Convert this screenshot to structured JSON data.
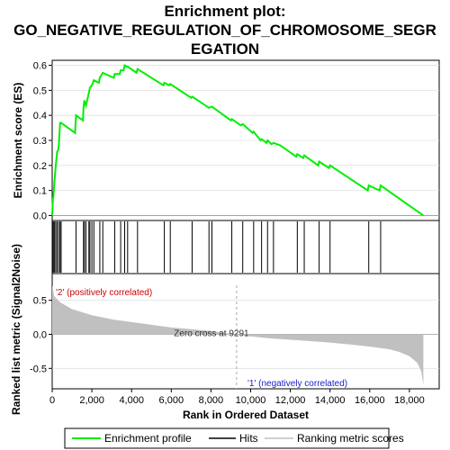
{
  "chart_data": {
    "type": "line",
    "title_lines": [
      "Enrichment plot:",
      "GO_NEGATIVE_REGULATION_OF_CHROMOSOME_SEGR",
      "EGATION"
    ],
    "es_panel": {
      "ylabel": "Enrichment score (ES)",
      "ylim": [
        -0.02,
        0.62
      ],
      "yticks": [
        "0.0",
        "0.1",
        "0.2",
        "0.3",
        "0.4",
        "0.5",
        "0.6"
      ],
      "ytick_values": [
        0.0,
        0.1,
        0.2,
        0.3,
        0.4,
        0.5,
        0.6
      ],
      "line_color": "#00ee00",
      "series": [
        {
          "name": "Enrichment profile",
          "x": [
            0,
            40,
            60,
            120,
            180,
            250,
            300,
            330,
            400,
            450,
            1150,
            1200,
            1550,
            1580,
            1620,
            1700,
            1850,
            1900,
            2000,
            2100,
            2350,
            2400,
            2550,
            3100,
            3150,
            3400,
            3450,
            3600,
            3650,
            3750,
            3800,
            4250,
            4300,
            5600,
            5650,
            5900,
            5950,
            7000,
            7050,
            7900,
            8050,
            9000,
            9050,
            9500,
            9600,
            10100,
            10150,
            10500,
            10550,
            10800,
            10850,
            11050,
            11150,
            11500,
            12300,
            12350,
            12650,
            12700,
            13400,
            13450,
            13950,
            14000,
            15900,
            15950,
            16500,
            16550,
            18700
          ],
          "y": [
            0.0,
            0.07,
            0.075,
            0.14,
            0.2,
            0.255,
            0.26,
            0.28,
            0.37,
            0.37,
            0.33,
            0.4,
            0.38,
            0.43,
            0.46,
            0.44,
            0.49,
            0.51,
            0.52,
            0.54,
            0.53,
            0.55,
            0.57,
            0.55,
            0.565,
            0.565,
            0.58,
            0.58,
            0.6,
            0.595,
            0.595,
            0.57,
            0.585,
            0.52,
            0.53,
            0.52,
            0.525,
            0.47,
            0.475,
            0.43,
            0.435,
            0.38,
            0.385,
            0.36,
            0.365,
            0.33,
            0.335,
            0.3,
            0.305,
            0.29,
            0.3,
            0.285,
            0.29,
            0.28,
            0.235,
            0.245,
            0.23,
            0.24,
            0.2,
            0.215,
            0.19,
            0.2,
            0.1,
            0.12,
            0.1,
            0.12,
            0.0
          ]
        }
      ]
    },
    "hits_panel": {
      "hits": [
        20,
        60,
        120,
        180,
        250,
        330,
        400,
        450,
        1200,
        1580,
        1620,
        1700,
        1850,
        1900,
        2000,
        2100,
        2400,
        2550,
        3150,
        3450,
        3650,
        3800,
        4300,
        5650,
        5950,
        7050,
        7900,
        8050,
        9050,
        9600,
        10150,
        10550,
        10850,
        11150,
        12350,
        12700,
        13450,
        14000,
        15950,
        16550
      ]
    },
    "gradient_colors": [
      "#cc0000",
      "#e23030",
      "#f06a6a",
      "#f8a6a6",
      "#fccccc",
      "#f9c8f0",
      "#f0d0f8",
      "#ddd8f8",
      "#c0c0f4",
      "#8c8ce6",
      "#5a5ad8",
      "#1a1acc"
    ],
    "metric_panel": {
      "ylabel": "Ranked list metric (Signal2Noise)",
      "ylim": [
        -0.8,
        0.72
      ],
      "yticks": [
        "0.5",
        "0.0",
        "-0.5"
      ],
      "ytick_values": [
        0.5,
        0.0,
        -0.5
      ],
      "metric_points": [
        [
          0,
          0.72
        ],
        [
          100,
          0.56
        ],
        [
          400,
          0.47
        ],
        [
          1000,
          0.37
        ],
        [
          2000,
          0.28
        ],
        [
          3000,
          0.22
        ],
        [
          4000,
          0.18
        ],
        [
          5000,
          0.14
        ],
        [
          6000,
          0.1
        ],
        [
          7000,
          0.075
        ],
        [
          8000,
          0.05
        ],
        [
          9291,
          0.0
        ],
        [
          10000,
          -0.03
        ],
        [
          11000,
          -0.06
        ],
        [
          12000,
          -0.08
        ],
        [
          13000,
          -0.1
        ],
        [
          14000,
          -0.12
        ],
        [
          15000,
          -0.15
        ],
        [
          16000,
          -0.18
        ],
        [
          17000,
          -0.22
        ],
        [
          17500,
          -0.26
        ],
        [
          18000,
          -0.32
        ],
        [
          18400,
          -0.42
        ],
        [
          18600,
          -0.55
        ],
        [
          18700,
          -0.75
        ]
      ],
      "zero_cross": 9291,
      "zero_cross_label": "Zero cross at 9291",
      "pos_label": "'2' (positively correlated)",
      "neg_label": "'1' (negatively correlated)"
    },
    "x_axis": {
      "xlabel": "Rank in Ordered Dataset",
      "xlim": [
        0,
        19500
      ],
      "xticks": [
        "0",
        "2,000",
        "4,000",
        "6,000",
        "8,000",
        "10,000",
        "12,000",
        "14,000",
        "16,000",
        "18,000"
      ],
      "xtick_values": [
        0,
        2000,
        4000,
        6000,
        8000,
        10000,
        12000,
        14000,
        16000,
        18000
      ],
      "n_genes": 18700
    },
    "legend": [
      {
        "label": "Enrichment profile",
        "color": "#00ee00"
      },
      {
        "label": "Hits",
        "color": "#000000"
      },
      {
        "label": "Ranking metric scores",
        "color": "#c0c0c0"
      }
    ]
  }
}
